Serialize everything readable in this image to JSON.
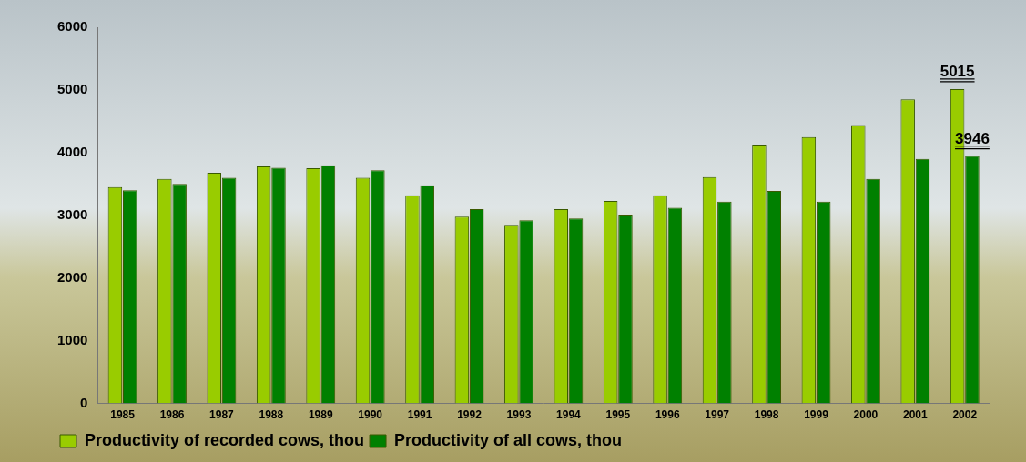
{
  "chart_data": {
    "type": "bar",
    "categories": [
      "1985",
      "1986",
      "1987",
      "1988",
      "1989",
      "1990",
      "1991",
      "1992",
      "1993",
      "1994",
      "1995",
      "1996",
      "1997",
      "1998",
      "1999",
      "2000",
      "2001",
      "2002"
    ],
    "series": [
      {
        "name": "Productivity of recorded cows, thou",
        "color": "#99cc00",
        "values": [
          3450,
          3580,
          3680,
          3780,
          3750,
          3600,
          3320,
          2980,
          2850,
          3100,
          3230,
          3320,
          3610,
          4130,
          4250,
          4440,
          4850,
          5015
        ]
      },
      {
        "name": "Productivity of all cows, thou",
        "color": "#008000",
        "values": [
          3400,
          3500,
          3600,
          3760,
          3800,
          3720,
          3480,
          3100,
          2920,
          2950,
          3010,
          3120,
          3220,
          3390,
          3220,
          3580,
          3900,
          3946
        ]
      }
    ],
    "ylim": [
      0,
      6000
    ],
    "yticks": [
      0,
      1000,
      2000,
      3000,
      4000,
      5000,
      6000
    ],
    "grid": false,
    "legend": "bottom-left",
    "annotations": [
      {
        "text": "5015",
        "x": "2002",
        "y": 5015
      },
      {
        "text": "3946",
        "x": "2002",
        "y": 3946
      }
    ]
  }
}
